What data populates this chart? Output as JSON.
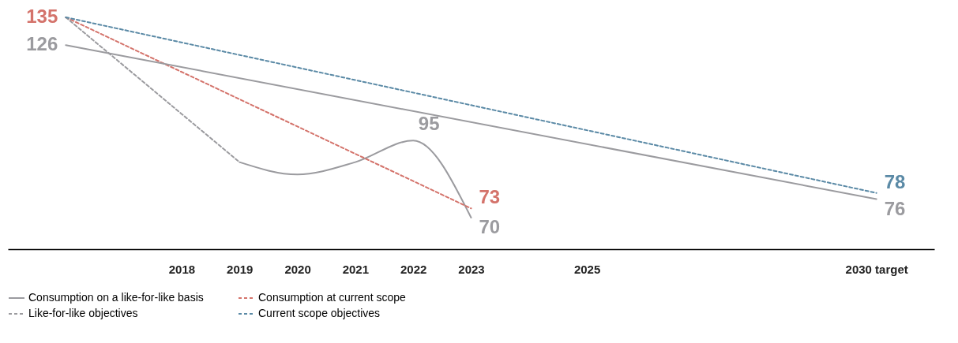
{
  "chart_data": {
    "type": "line",
    "legend": "bottom",
    "grid": false,
    "tick_labels": "x",
    "xlim": [
      2015,
      2031
    ],
    "xticks": [
      2018,
      2019,
      2020,
      2021,
      2022,
      2023,
      2025,
      {
        "value": 2030,
        "label": "2030 target"
      }
    ],
    "series": [
      {
        "name": "Consumption on a like-for-like basis",
        "color": "#9b9b9f",
        "line_style": "solid",
        "x": [
          2019,
          2020,
          2021,
          2022,
          2023
        ],
        "values": [
          88,
          84,
          88,
          95,
          70
        ],
        "value_labels": [
          null,
          null,
          null,
          "95",
          "70"
        ]
      },
      {
        "name": "Consumption at current scope",
        "color": "#d4736b",
        "line_style": "dashed",
        "x": [
          2016,
          2023
        ],
        "values": [
          135,
          73
        ],
        "value_labels": [
          "135",
          "73"
        ]
      },
      {
        "name": "Like-for-like objectives",
        "color": "#9b9b9f",
        "line_style": "dashed",
        "x": [
          2016,
          2019
        ],
        "values": [
          135,
          88
        ],
        "value_labels": [
          null,
          null
        ]
      },
      {
        "name": "Current scope objectives",
        "color": "#5b8aa6",
        "line_style": "dashed",
        "x": [
          2016,
          2030
        ],
        "values": [
          135,
          78
        ],
        "value_labels": [
          null,
          "78"
        ]
      },
      {
        "color": "#9b9b9f",
        "line_style": "solid",
        "x": [
          2016,
          2030
        ],
        "values": [
          126,
          76
        ],
        "value_labels": [
          "126",
          "76"
        ]
      }
    ]
  }
}
